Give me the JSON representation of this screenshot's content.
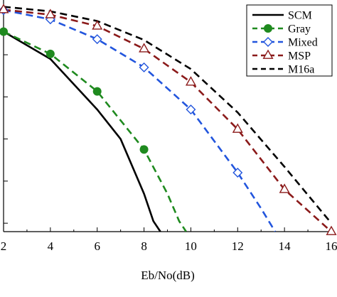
{
  "chart_data": {
    "type": "line",
    "xlabel": "Eb/No(dB)",
    "ylabel": "",
    "xlim": [
      2,
      16
    ],
    "ylim": [
      -5.2,
      0.3
    ],
    "y_scale": "log10 (BER); no y tick labels visible",
    "x_ticks": [
      "2",
      "4",
      "6",
      "8",
      "10",
      "12",
      "14",
      "16"
    ],
    "legend_position": "top-right",
    "series": [
      {
        "name": "SCM",
        "color": "#000000",
        "dash": "solid",
        "marker": "none",
        "x": [
          2,
          4,
          6,
          7,
          8,
          8.4,
          8.7
        ],
        "y": [
          -0.45,
          -1.1,
          -2.3,
          -3.0,
          -4.3,
          -4.95,
          -5.2
        ]
      },
      {
        "name": "Gray",
        "color": "#1f8a1f",
        "dash": "dashed",
        "marker": "filled-circle",
        "x": [
          2,
          4,
          6,
          8,
          9,
          9.5,
          9.8
        ],
        "y": [
          -0.45,
          -0.98,
          -1.87,
          -3.25,
          -4.3,
          -4.95,
          -5.2
        ],
        "marker_points": [
          0,
          1,
          2,
          3
        ]
      },
      {
        "name": "Mixed",
        "color": "#2255dd",
        "dash": "dashed",
        "marker": "open-diamond",
        "x": [
          2,
          4,
          6,
          8,
          10,
          12,
          13,
          13.6
        ],
        "y": [
          0.06,
          -0.16,
          -0.63,
          -1.3,
          -2.3,
          -3.8,
          -4.65,
          -5.2
        ],
        "marker_points": [
          0,
          1,
          2,
          3,
          4,
          5
        ]
      },
      {
        "name": "MSP",
        "color": "#8b1a1a",
        "dash": "dashed",
        "marker": "open-triangle",
        "x": [
          2,
          4,
          6,
          8,
          10,
          12,
          14,
          16
        ],
        "y": [
          0.07,
          -0.05,
          -0.32,
          -0.86,
          -1.65,
          -2.77,
          -4.2,
          -5.2
        ],
        "marker_points": [
          0,
          1,
          2,
          3,
          4,
          5,
          6,
          7
        ]
      },
      {
        "name": "M16a",
        "color": "#000000",
        "dash": "dashed",
        "marker": "none",
        "x": [
          2,
          4,
          6,
          8,
          10,
          12,
          14,
          16
        ],
        "y": [
          0.14,
          0.03,
          -0.2,
          -0.65,
          -1.34,
          -2.37,
          -3.66,
          -5.0
        ]
      }
    ]
  }
}
